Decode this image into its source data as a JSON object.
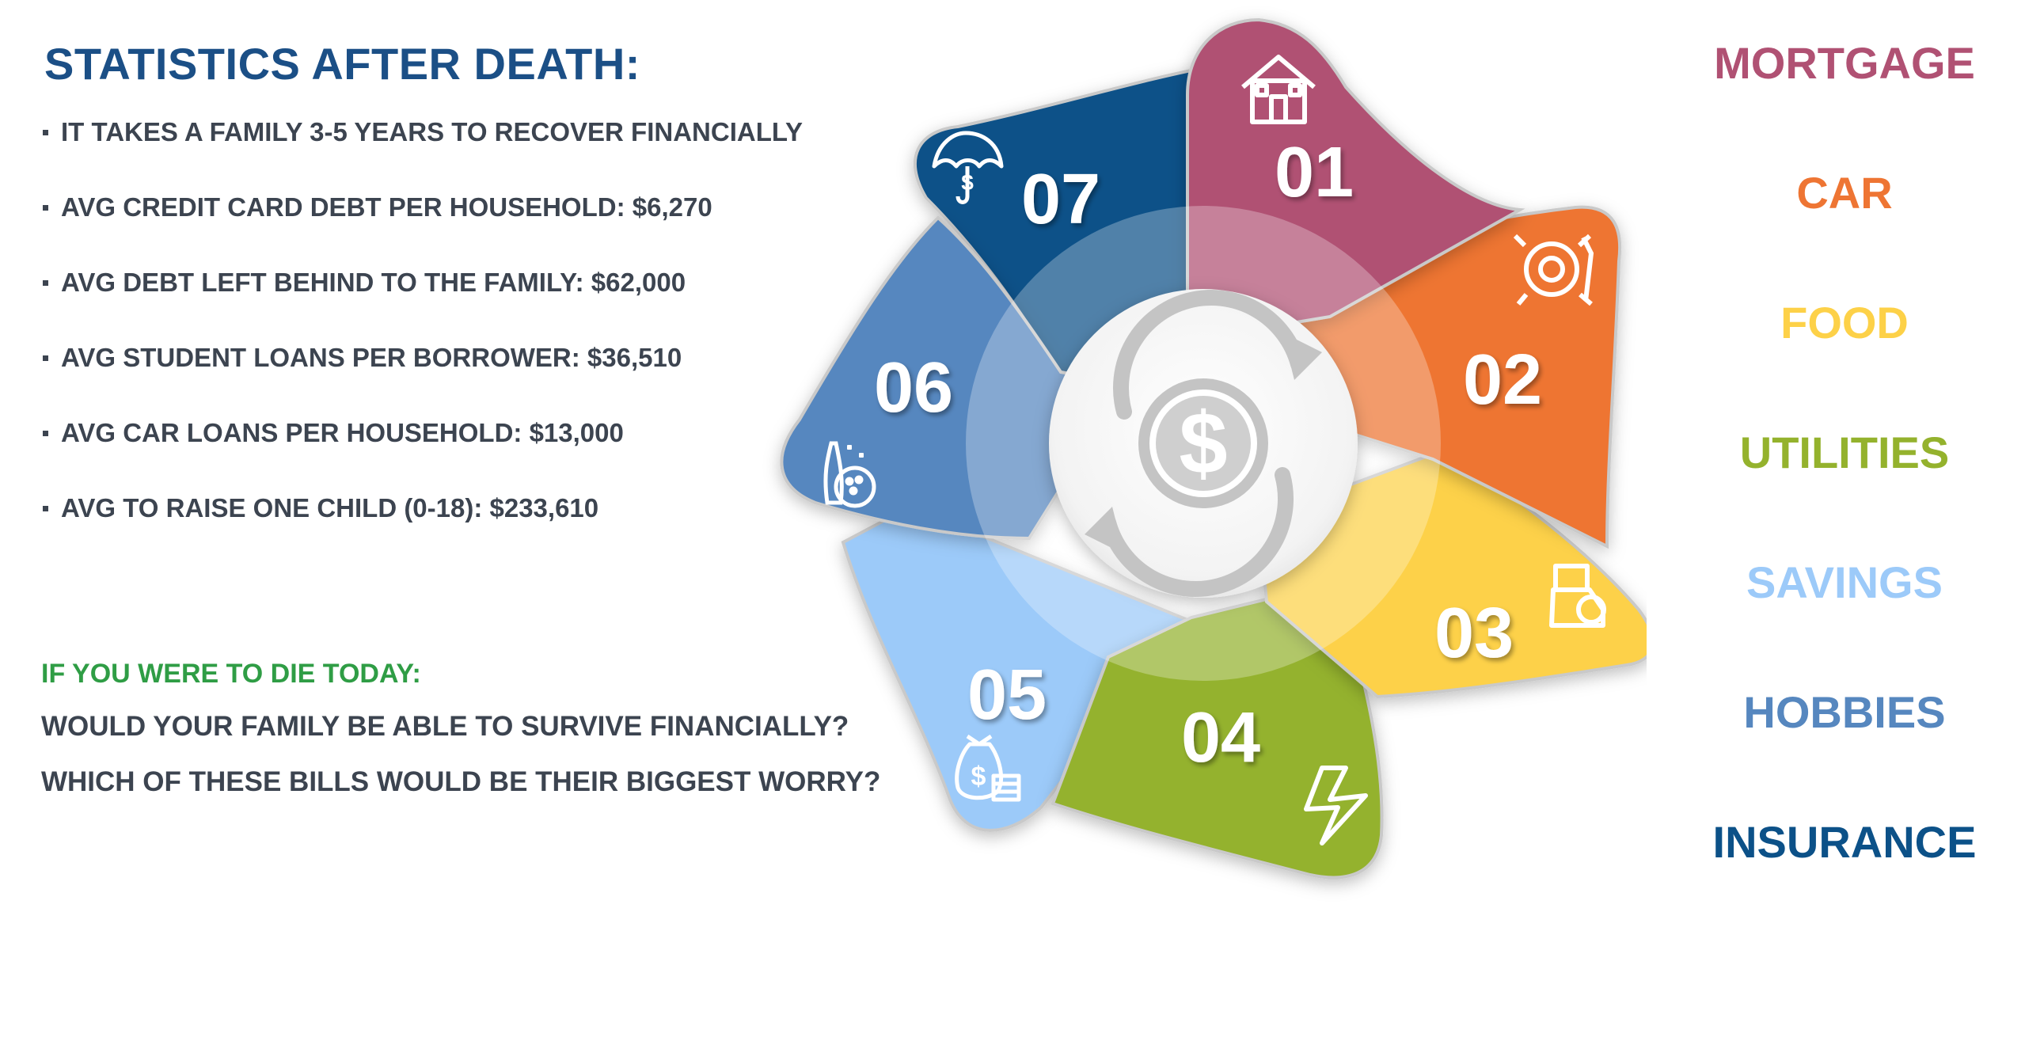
{
  "heading": "STATISTICS AFTER DEATH:",
  "stats": [
    "IT TAKES A FAMILY 3-5 YEARS TO RECOVER FINANCIALLY",
    "AVG CREDIT CARD DEBT PER HOUSEHOLD: $6,270",
    "AVG DEBT LEFT BEHIND TO THE FAMILY: $62,000",
    "AVG STUDENT LOANS PER BORROWER: $36,510",
    "AVG CAR LOANS PER HOUSEHOLD: $13,000",
    "AVG TO RAISE ONE CHILD (0-18): $233,610"
  ],
  "questions": {
    "intro": "IF YOU WERE TO DIE TODAY:",
    "q1": "WOULD YOUR FAMILY BE ABLE TO SURVIVE FINANCIALLY?",
    "q2": "WHICH OF THESE BILLS WOULD BE THEIR BIGGEST WORRY?"
  },
  "categories": [
    {
      "label": "MORTGAGE",
      "color": "#b05173"
    },
    {
      "label": "CAR",
      "color": "#ee7533"
    },
    {
      "label": "FOOD",
      "color": "#fdd148"
    },
    {
      "label": "UTILITIES",
      "color": "#94b22d"
    },
    {
      "label": "SAVINGS",
      "color": "#9ccaf9"
    },
    {
      "label": "HOBBIES",
      "color": "#5687bf"
    },
    {
      "label": "INSURANCE",
      "color": "#0c5188"
    }
  ],
  "wheel": {
    "center_icon": "dollar-cycle-icon",
    "petals": [
      {
        "number": "01",
        "icon": "house-icon",
        "color": "#b05173"
      },
      {
        "number": "02",
        "icon": "gear-wrench-icon",
        "color": "#ee7533"
      },
      {
        "number": "03",
        "icon": "milk-carton-icon",
        "color": "#fdd148"
      },
      {
        "number": "04",
        "icon": "lightning-icon",
        "color": "#94b22d"
      },
      {
        "number": "05",
        "icon": "money-bag-icon",
        "color": "#9ccaf9"
      },
      {
        "number": "06",
        "icon": "bowling-icon",
        "color": "#5687bf"
      },
      {
        "number": "07",
        "icon": "umbrella-dollar-icon",
        "color": "#0c5188"
      }
    ]
  }
}
